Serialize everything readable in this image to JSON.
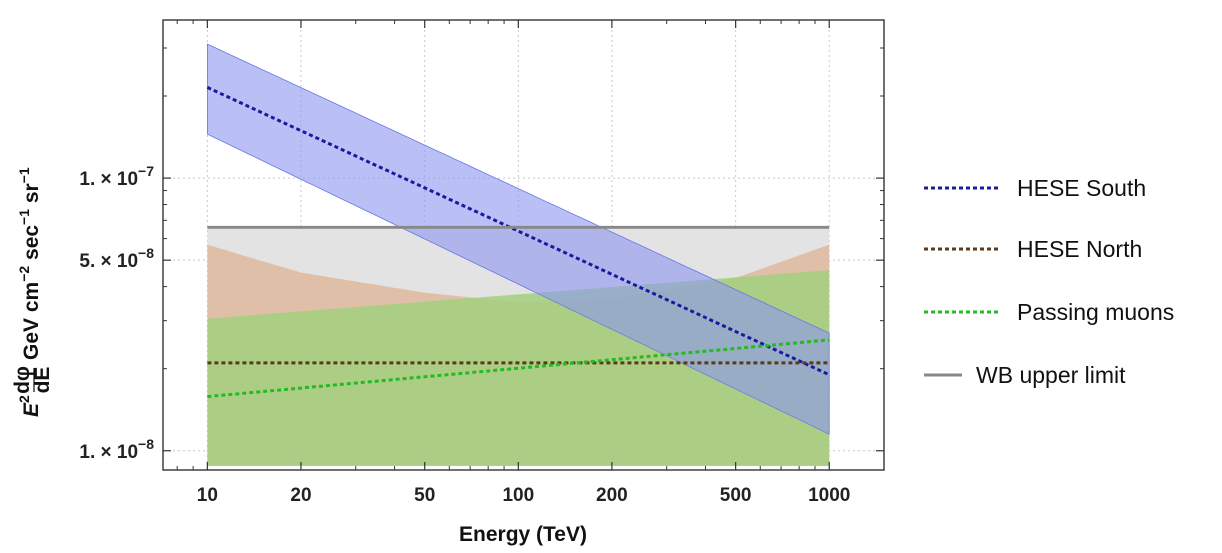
{
  "chart_data": {
    "type": "line",
    "title": "",
    "xlabel": "Energy (TeV)",
    "ylabel": {
      "base": "E",
      "sup": "2",
      "frac_num": "dφ",
      "frac_den": "dE",
      "units_1": "GeV cm",
      "sup_1": "−2",
      "units_2": "sec",
      "sup_2": "−1",
      "units_3": "sr",
      "sup_3": "−1"
    },
    "x_scale": "log",
    "y_scale": "log",
    "xlim": [
      7.2,
      1500
    ],
    "ylim": [
      0.0085,
      0.38
    ],
    "y_unit_note": "values in units of 1e-6",
    "x_ticks": [
      {
        "value": 10,
        "label": "10"
      },
      {
        "value": 20,
        "label": "20"
      },
      {
        "value": 50,
        "label": "50"
      },
      {
        "value": 100,
        "label": "100"
      },
      {
        "value": 200,
        "label": "200"
      },
      {
        "value": 500,
        "label": "500"
      },
      {
        "value": 1000,
        "label": "1000"
      }
    ],
    "y_ticks": [
      {
        "value": 0.01,
        "label_mantissa": "1. × 10",
        "label_exp": "−8"
      },
      {
        "value": 0.05,
        "label_mantissa": "5. × 10",
        "label_exp": "−8"
      },
      {
        "value": 0.1,
        "label_mantissa": "1. × 10",
        "label_exp": "−7"
      }
    ],
    "grid": true,
    "legend_position": "right",
    "series": [
      {
        "name": "HESE South",
        "style": "dotted",
        "color": "#1a1aa0",
        "band_color": "#8c96f0",
        "x": [
          10,
          1000
        ],
        "values": [
          0.215,
          0.019
        ],
        "band_lower": [
          0.145,
          0.0115
        ],
        "band_upper": [
          0.31,
          0.027
        ]
      },
      {
        "name": "HESE North",
        "style": "dotted",
        "color": "#5a3a1a",
        "band_color": "#deb89c",
        "x": [
          10,
          20,
          50,
          100,
          200,
          500,
          1000
        ],
        "values": [
          0.021,
          0.021,
          0.021,
          0.021,
          0.021,
          0.021,
          0.021
        ],
        "band_lower": [
          0.0088,
          0.0088,
          0.0088,
          0.0088,
          0.0088,
          0.0088,
          0.0088
        ],
        "band_upper": [
          0.057,
          0.045,
          0.038,
          0.035,
          0.036,
          0.043,
          0.057
        ]
      },
      {
        "name": "Passing muons",
        "style": "dotted",
        "color": "#22bb22",
        "band_color": "#a2d07e",
        "x": [
          10,
          1000
        ],
        "values": [
          0.0158,
          0.0255
        ],
        "band_lower": [
          0.0088,
          0.0088
        ],
        "band_upper": [
          0.0305,
          0.046
        ]
      },
      {
        "name": "WB upper limit",
        "style": "solid",
        "color": "#888888",
        "band_color": "#e3e3e3",
        "x": [
          10,
          1000
        ],
        "values": [
          0.066,
          0.066
        ],
        "band_lower": [
          0.0088,
          0.0088
        ],
        "band_upper": [
          0.066,
          0.066
        ]
      }
    ]
  }
}
